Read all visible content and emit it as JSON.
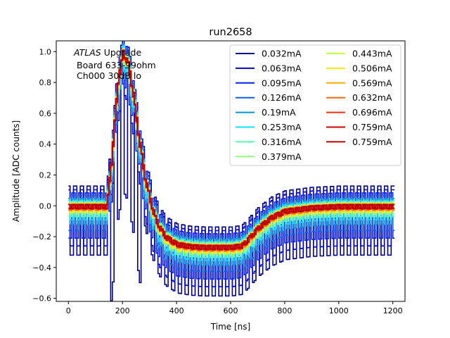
{
  "chart_data": {
    "type": "line",
    "title": "run2658",
    "xlabel": "Time [ns]",
    "ylabel": "Amplitude [ADC counts]",
    "xlim": [
      -45,
      1245
    ],
    "ylim": [
      -0.62,
      1.07
    ],
    "xticks": [
      0,
      200,
      400,
      600,
      800,
      1000,
      1200
    ],
    "xtick_labels": [
      "0",
      "200",
      "400",
      "600",
      "800",
      "1000",
      "1200"
    ],
    "yticks": [
      -0.6,
      -0.4,
      -0.2,
      0.0,
      0.2,
      0.4,
      0.6,
      0.8,
      1.0
    ],
    "ytick_labels": [
      "−0.6",
      "−0.4",
      "−0.2",
      "0.0",
      "0.2",
      "0.4",
      "0.6",
      "0.8",
      "1.0"
    ],
    "annotation": {
      "experiment": "ATLAS",
      "suffix": " Upgrade",
      "line2": "Board 633-99ohm",
      "line3": "Ch000 30dB lo"
    },
    "legend_location": "upper right",
    "pulse_shape": {
      "time_ns": [
        0,
        140,
        160,
        180,
        200,
        220,
        240,
        260,
        280,
        300,
        320,
        340,
        360,
        400,
        450,
        500,
        550,
        600,
        640,
        660,
        700,
        750,
        800,
        900,
        1000,
        1100,
        1200
      ],
      "amplitude": [
        0.0,
        0.0,
        0.35,
        0.8,
        1.0,
        0.92,
        0.7,
        0.43,
        0.2,
        0.04,
        -0.08,
        -0.15,
        -0.2,
        -0.245,
        -0.26,
        -0.265,
        -0.265,
        -0.265,
        -0.255,
        -0.22,
        -0.14,
        -0.07,
        -0.03,
        -0.008,
        0.0,
        0.0,
        0.0
      ]
    },
    "series": [
      {
        "name": "0.032mA",
        "color": "#00008f",
        "noise": 0.32
      },
      {
        "name": "0.063mA",
        "color": "#0000cc",
        "noise": 0.26
      },
      {
        "name": "0.095mA",
        "color": "#0020ff",
        "noise": 0.21
      },
      {
        "name": "0.126mA",
        "color": "#0060ff",
        "noise": 0.16
      },
      {
        "name": "0.19mA",
        "color": "#0096d6",
        "noise": 0.12
      },
      {
        "name": "0.253mA",
        "color": "#10e0ff",
        "noise": 0.09
      },
      {
        "name": "0.316mA",
        "color": "#50ffb0",
        "noise": 0.07
      },
      {
        "name": "0.379mA",
        "color": "#90ff70",
        "noise": 0.055
      },
      {
        "name": "0.443mA",
        "color": "#c8ff37",
        "noise": 0.045
      },
      {
        "name": "0.506mA",
        "color": "#ffe600",
        "noise": 0.04
      },
      {
        "name": "0.569mA",
        "color": "#ffaa00",
        "noise": 0.032
      },
      {
        "name": "0.632mA",
        "color": "#ff6a00",
        "noise": 0.026
      },
      {
        "name": "0.696mA",
        "color": "#f03010",
        "noise": 0.022
      },
      {
        "name": "0.759mA",
        "color": "#c80000",
        "noise": 0.018
      },
      {
        "name": "0.759mA",
        "color": "#bb0000",
        "noise": 0.016
      }
    ]
  }
}
